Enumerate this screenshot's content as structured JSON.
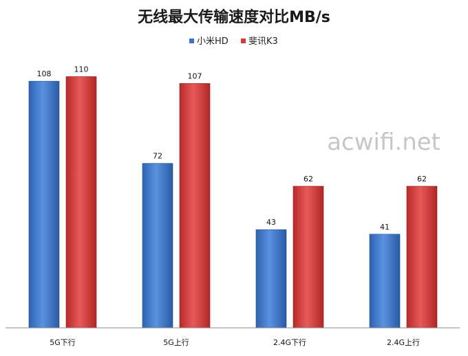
{
  "chart_data": {
    "type": "bar",
    "title": "无线最大传输速度对比MB/s",
    "categories": [
      "5G下行",
      "5G上行",
      "2.4G下行",
      "2.4G上行"
    ],
    "series": [
      {
        "name": "小米HD",
        "values": [
          108,
          72,
          43,
          41
        ],
        "color": "#3a74c8"
      },
      {
        "name": "斐讯K3",
        "values": [
          110,
          107,
          62,
          62
        ],
        "color": "#d43c3c"
      }
    ],
    "ylim": [
      0,
      130
    ],
    "grid": false,
    "legend_position": "top-center"
  },
  "watermark": "acwifi.net"
}
